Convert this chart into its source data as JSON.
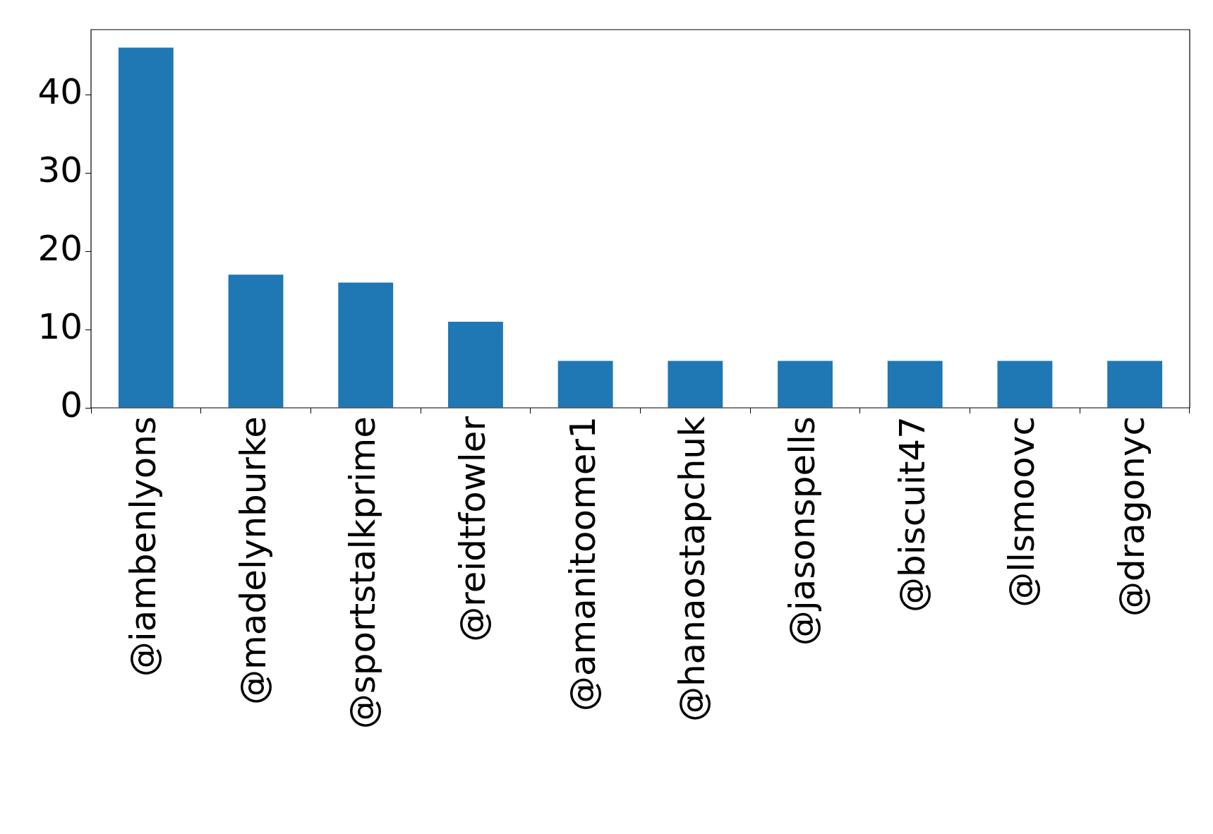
{
  "chart_data": {
    "type": "bar",
    "categories": [
      "@iambenlyons",
      "@madelynburke",
      "@sportstalkprime",
      "@reidtfowler",
      "@amanitoomer1",
      "@hanaostapchuk",
      "@jasonspells",
      "@biscuit47",
      "@llsmoovc",
      "@dragonyc"
    ],
    "values": [
      46,
      17,
      16,
      11,
      6,
      6,
      6,
      6,
      6,
      6
    ],
    "color": "#1f77b4",
    "ylim": [
      0,
      48.3
    ],
    "yticks": [
      0,
      10,
      20,
      30,
      40
    ],
    "grid": false,
    "legend": false
  }
}
